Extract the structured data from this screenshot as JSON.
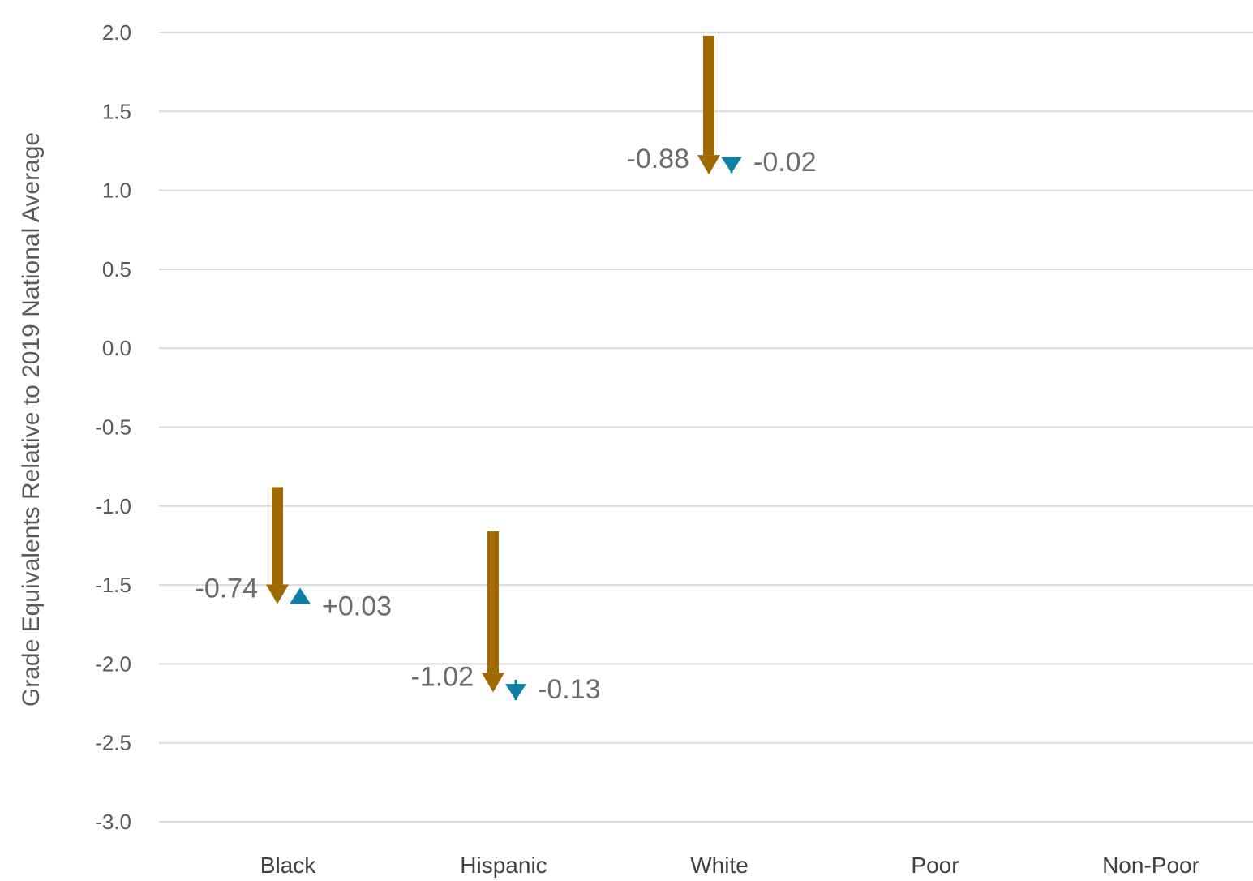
{
  "chart_data": {
    "type": "arrow-change",
    "title": "",
    "ylabel": "Grade Equivalents Relative to 2019 National Average",
    "xlabel": "",
    "ylim": [
      -3.0,
      2.0
    ],
    "yticks": [
      "2.0",
      "1.5",
      "1.0",
      "0.5",
      "0.0",
      "-0.5",
      "-1.0",
      "-1.5",
      "-2.0",
      "-2.5",
      "-3.0"
    ],
    "ytick_values": [
      2.0,
      1.5,
      1.0,
      0.5,
      0.0,
      -0.5,
      -1.0,
      -1.5,
      -2.0,
      -2.5,
      -3.0
    ],
    "grid": true,
    "legend": "none",
    "categories": [
      "Black",
      "Hispanic",
      "White",
      "Poor",
      "Non-Poor"
    ],
    "series": [
      {
        "colors": {
          "arrow": "#a06a00"
        },
        "points": [
          {
            "category": "Black",
            "start": -0.88,
            "end": -1.62,
            "label": "-0.74"
          },
          {
            "category": "Hispanic",
            "start": -1.16,
            "end": -2.18,
            "label": "-1.02"
          },
          {
            "category": "White",
            "start": 1.98,
            "end": 1.1,
            "label": "-0.88"
          }
        ]
      },
      {
        "colors": {
          "marker": "#0e7fa6"
        },
        "points": [
          {
            "category": "Black",
            "start": -1.62,
            "end": -1.59,
            "direction": "up",
            "label": "+0.03"
          },
          {
            "category": "Hispanic",
            "start": -2.1,
            "end": -2.23,
            "direction": "down",
            "label": "-0.13"
          },
          {
            "category": "White",
            "start": 1.13,
            "end": 1.11,
            "direction": "down",
            "label": "-0.02"
          }
        ]
      }
    ]
  }
}
